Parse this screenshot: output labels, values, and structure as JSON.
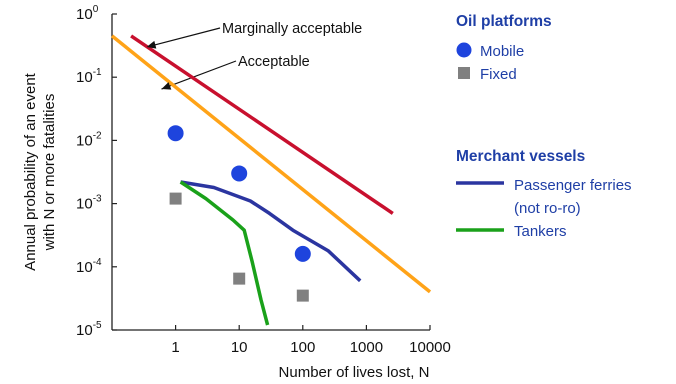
{
  "chart_data": {
    "type": "line",
    "xlabel": "Number of lives lost, N",
    "ylabel_line1": "Annual probability of an event",
    "ylabel_line2": "with N or more fatalities",
    "x_scale": "log",
    "y_scale": "log",
    "xlim": [
      0.1,
      10000
    ],
    "ylim": [
      1e-05,
      1
    ],
    "x_ticks": [
      {
        "value": 1,
        "label": "1"
      },
      {
        "value": 10,
        "label": "10"
      },
      {
        "value": 100,
        "label": "100"
      },
      {
        "value": 1000,
        "label": "1000"
      },
      {
        "value": 10000,
        "label": "10000"
      }
    ],
    "y_ticks": [
      {
        "value": 1,
        "base": "10",
        "exp": "0"
      },
      {
        "value": 0.1,
        "base": "10",
        "exp": "-1"
      },
      {
        "value": 0.01,
        "base": "10",
        "exp": "-2"
      },
      {
        "value": 0.001,
        "base": "10",
        "exp": "-3"
      },
      {
        "value": 0.0001,
        "base": "10",
        "exp": "-4"
      },
      {
        "value": 1e-05,
        "base": "10",
        "exp": "-5"
      }
    ],
    "grid": false,
    "series": [
      {
        "name": "Marginally acceptable",
        "kind": "line",
        "color": "#c8102e",
        "points": [
          [
            0.2,
            0.45
          ],
          [
            2600,
            0.0007
          ]
        ]
      },
      {
        "name": "Acceptable",
        "kind": "line",
        "color": "#ffa318",
        "points": [
          [
            0.1,
            0.45
          ],
          [
            10000,
            4e-05
          ]
        ]
      },
      {
        "name": "Passenger ferries (not ro-ro)",
        "kind": "line",
        "color": "#2b35a0",
        "points": [
          [
            1.2,
            0.0022
          ],
          [
            4,
            0.0018
          ],
          [
            15,
            0.0011
          ],
          [
            30,
            0.0007
          ],
          [
            70,
            0.00038
          ],
          [
            250,
            0.00018
          ],
          [
            800,
            6e-05
          ]
        ]
      },
      {
        "name": "Tankers",
        "kind": "line",
        "color": "#1aa11a",
        "points": [
          [
            1.2,
            0.0022
          ],
          [
            3,
            0.0012
          ],
          [
            8,
            0.00055
          ],
          [
            12,
            0.00038
          ],
          [
            16,
            0.00012
          ],
          [
            22,
            3e-05
          ],
          [
            28,
            1.2e-05
          ]
        ]
      },
      {
        "name": "Mobile",
        "kind": "scatter",
        "marker": "circle",
        "color": "#1e44dd",
        "points": [
          [
            1,
            0.013
          ],
          [
            10,
            0.003
          ],
          [
            100,
            0.00016
          ]
        ]
      },
      {
        "name": "Fixed",
        "kind": "scatter",
        "marker": "square",
        "color": "#808080",
        "points": [
          [
            1,
            0.0012
          ],
          [
            10,
            6.5e-05
          ],
          [
            100,
            3.5e-05
          ]
        ]
      }
    ],
    "annotations": [
      {
        "text": "Marginally acceptable",
        "target": [
          0.35,
          0.3
        ],
        "arrow": true
      },
      {
        "text": "Acceptable",
        "target": [
          0.6,
          0.065
        ],
        "arrow": true
      }
    ]
  },
  "legend": {
    "group1_title": "Oil platforms",
    "mobile_label": "Mobile",
    "fixed_label": "Fixed",
    "group2_title": "Merchant vessels",
    "ferries_label_line1": "Passenger ferries",
    "ferries_label_line2": "(not ro-ro)",
    "tankers_label": "Tankers",
    "colors": {
      "mobile": "#1e44dd",
      "fixed": "#808080",
      "ferries": "#2b35a0",
      "tankers": "#1aa11a"
    }
  }
}
